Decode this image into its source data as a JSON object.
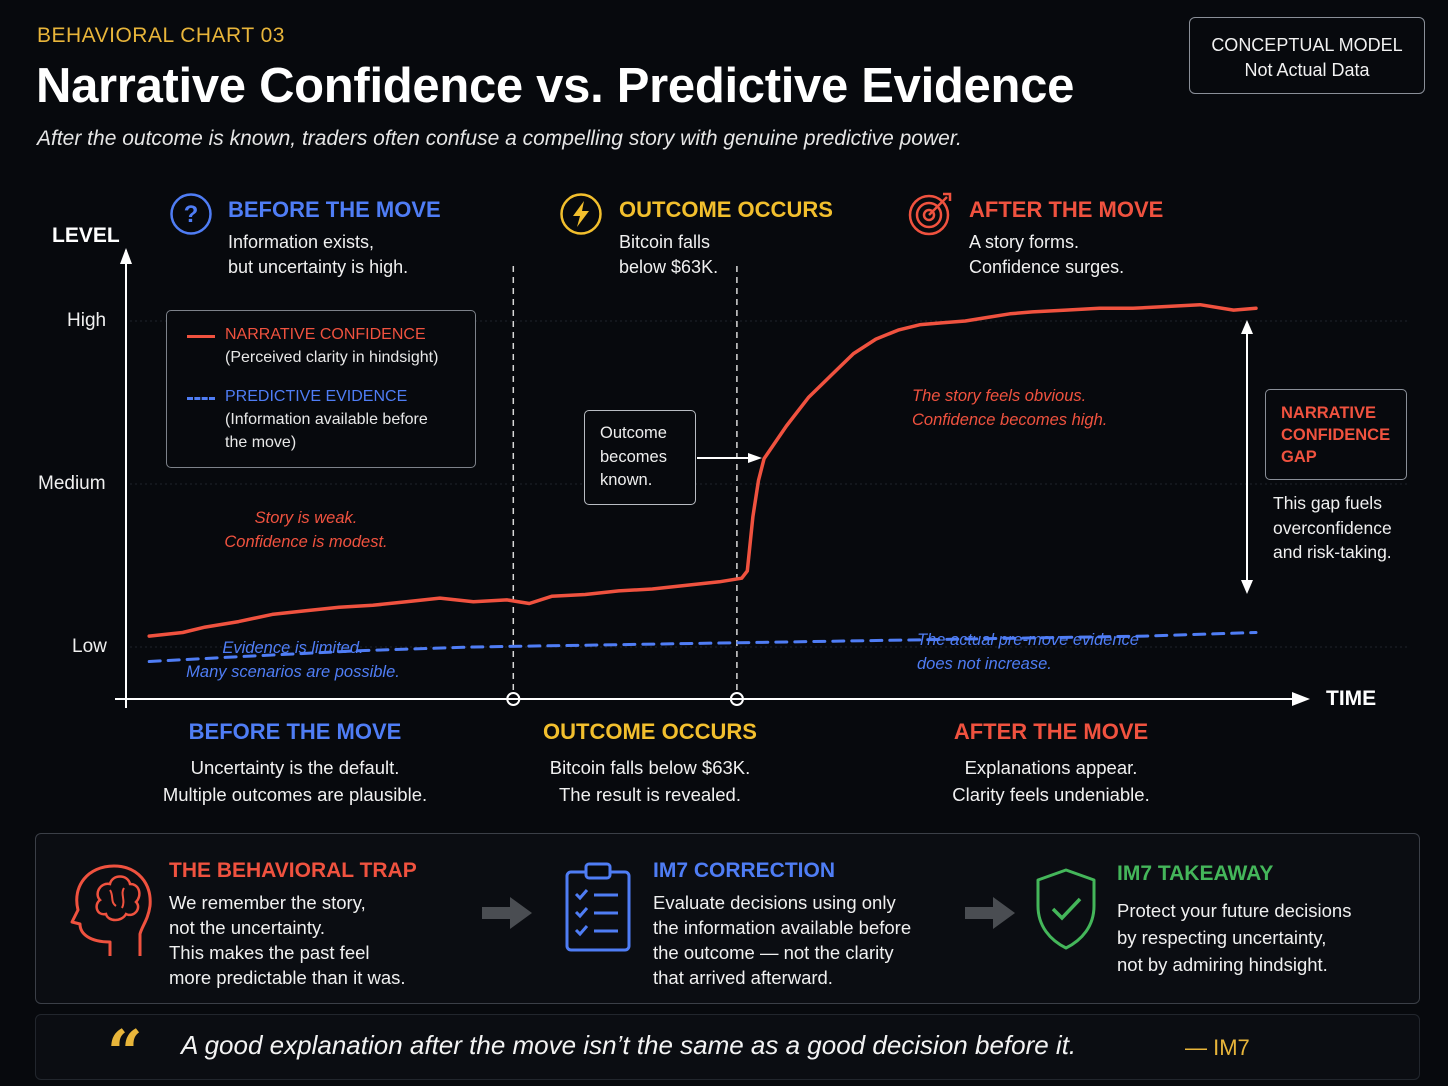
{
  "header": {
    "kicker": "BEHAVIORAL CHART 03",
    "title": "Narrative Confidence vs. Predictive Evidence",
    "subtitle": "After the outcome is known, traders often confuse a compelling story with genuine predictive power.",
    "badge_line1": "CONCEPTUAL MODEL",
    "badge_line2": "Not Actual Data"
  },
  "colors": {
    "background": "#07090d",
    "narrative": "#f0523f",
    "evidence": "#4f7df5",
    "outcome": "#f2bf2d",
    "takeaway": "#44b65a"
  },
  "phases_top": [
    {
      "icon": "question-circle-icon",
      "title": "BEFORE THE MOVE",
      "line1": "Information exists,",
      "line2": "but uncertainty is high."
    },
    {
      "icon": "lightning-icon",
      "title": "OUTCOME OCCURS",
      "line1": "Bitcoin falls",
      "line2": "below $63K."
    },
    {
      "icon": "target-icon",
      "title": "AFTER THE MOVE",
      "line1": "A story forms.",
      "line2": "Confidence surges."
    }
  ],
  "legend": {
    "narrative_title": "NARRATIVE CONFIDENCE",
    "narrative_desc": "(Perceived clarity in hindsight)",
    "evidence_title": "PREDICTIVE EVIDENCE",
    "evidence_desc1": "(Information available before",
    "evidence_desc2": "the move)"
  },
  "annotations": {
    "outcome_callout": [
      "Outcome",
      "becomes",
      "known."
    ],
    "story_weak": [
      "Story is weak.",
      "Confidence is modest."
    ],
    "evidence_limited": [
      "Evidence is limited.",
      "Many scenarios are possible."
    ],
    "story_obvious": [
      "The story feels obvious.",
      "Confidence becomes high."
    ],
    "evidence_flat": [
      "The actual pre-move evidence",
      "does not increase."
    ],
    "gap_title": [
      "NARRATIVE",
      "CONFIDENCE",
      "GAP"
    ],
    "gap_note": [
      "This gap fuels",
      "overconfidence",
      "and risk-taking."
    ]
  },
  "chart_data": {
    "type": "line",
    "conceptual": true,
    "ylabel": "LEVEL",
    "xlabel": "TIME",
    "y_ticks": [
      "Low",
      "Medium",
      "High"
    ],
    "ylim": [
      0,
      1.15
    ],
    "xlim": [
      0,
      1
    ],
    "phase_markers": [
      0.35,
      0.55
    ],
    "grid": true,
    "series": [
      {
        "name": "NARRATIVE CONFIDENCE",
        "style": "solid",
        "x": [
          0.01,
          0.04,
          0.06,
          0.09,
          0.12,
          0.15,
          0.18,
          0.21,
          0.24,
          0.27,
          0.3,
          0.33,
          0.35,
          0.37,
          0.4,
          0.43,
          0.46,
          0.49,
          0.52,
          0.54,
          0.545,
          0.55,
          0.555,
          0.56,
          0.58,
          0.6,
          0.62,
          0.64,
          0.66,
          0.68,
          0.7,
          0.72,
          0.74,
          0.76,
          0.78,
          0.8,
          0.83,
          0.86,
          0.89,
          0.92,
          0.95,
          0.98,
          1.0
        ],
        "y": [
          0.13,
          0.14,
          0.155,
          0.17,
          0.19,
          0.2,
          0.21,
          0.215,
          0.225,
          0.235,
          0.225,
          0.23,
          0.22,
          0.24,
          0.245,
          0.255,
          0.26,
          0.27,
          0.28,
          0.29,
          0.31,
          0.46,
          0.56,
          0.62,
          0.71,
          0.79,
          0.85,
          0.91,
          0.95,
          0.975,
          0.99,
          0.995,
          1.0,
          1.01,
          1.02,
          1.025,
          1.03,
          1.035,
          1.035,
          1.04,
          1.045,
          1.03,
          1.035
        ]
      },
      {
        "name": "PREDICTIVE EVIDENCE",
        "style": "dashed",
        "x": [
          0.01,
          0.1,
          0.2,
          0.3,
          0.4,
          0.5,
          0.6,
          0.7,
          0.8,
          0.9,
          1.0
        ],
        "y": [
          0.06,
          0.075,
          0.09,
          0.1,
          0.105,
          0.11,
          0.115,
          0.12,
          0.125,
          0.13,
          0.14
        ]
      }
    ]
  },
  "phases_bottom": [
    {
      "title": "BEFORE THE MOVE",
      "line1": "Uncertainty is the default.",
      "line2": "Multiple outcomes are plausible."
    },
    {
      "title": "OUTCOME OCCURS",
      "line1": "Bitcoin falls below $63K.",
      "line2": "The result is revealed."
    },
    {
      "title": "AFTER THE MOVE",
      "line1": "Explanations appear.",
      "line2": "Clarity feels undeniable."
    }
  ],
  "panel": {
    "trap": {
      "icon": "brain-head-icon",
      "title": "THE BEHAVIORAL TRAP",
      "lines": [
        "We remember the story,",
        "not the uncertainty.",
        "This makes the past feel",
        "more predictable than it was."
      ]
    },
    "correction": {
      "icon": "clipboard-checklist-icon",
      "title": "IM7 CORRECTION",
      "lines": [
        "Evaluate decisions using only",
        "the information available before",
        "the outcome — not the clarity",
        "that arrived afterward."
      ]
    },
    "takeaway": {
      "icon": "shield-check-icon",
      "title": "IM7 TAKEAWAY",
      "lines": [
        "Protect your future decisions",
        "by respecting uncertainty,",
        "not by admiring hindsight."
      ]
    }
  },
  "quote": {
    "mark": "“",
    "text": "A good explanation after the move isn’t the same as a good decision before it.",
    "author": "— IM7"
  }
}
